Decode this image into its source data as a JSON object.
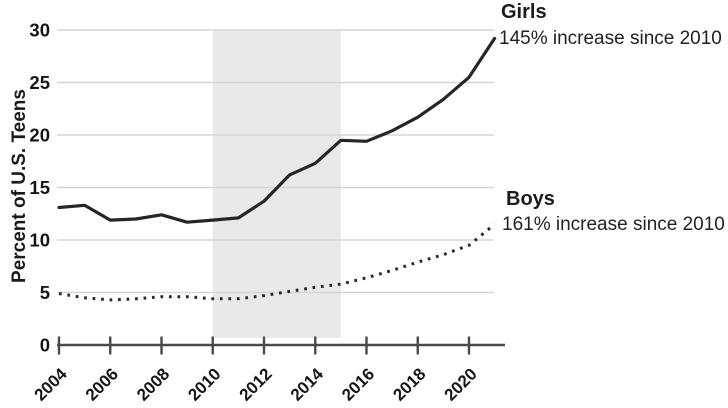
{
  "chart_data": {
    "type": "line",
    "title": "",
    "ylabel": "Percent of U.S. Teens",
    "xlabel": "",
    "x": [
      2004,
      2005,
      2006,
      2007,
      2008,
      2009,
      2010,
      2011,
      2012,
      2013,
      2014,
      2015,
      2016,
      2017,
      2018,
      2019,
      2020,
      2021
    ],
    "series": [
      {
        "name": "Girls",
        "style": "solid",
        "annotation": "145% increase since 2010",
        "values": [
          13.1,
          13.3,
          11.9,
          12.0,
          12.4,
          11.7,
          11.9,
          12.1,
          13.7,
          16.2,
          17.3,
          19.5,
          19.4,
          20.4,
          21.7,
          23.4,
          25.5,
          29.2
        ]
      },
      {
        "name": "Boys",
        "style": "dotted",
        "annotation": "161% increase since 2010",
        "values": [
          4.9,
          4.5,
          4.3,
          4.4,
          4.6,
          4.6,
          4.4,
          4.4,
          4.7,
          5.1,
          5.5,
          5.8,
          6.4,
          7.1,
          7.9,
          8.6,
          9.5,
          11.5
        ]
      }
    ],
    "ylim": [
      0,
      30
    ],
    "yticks": [
      0,
      5,
      10,
      15,
      20,
      25,
      30
    ],
    "xticks": [
      2004,
      2006,
      2008,
      2010,
      2012,
      2014,
      2016,
      2018,
      2020
    ],
    "xlim": [
      2004,
      2021.4
    ],
    "grid": true,
    "legend_position": "annotations-right",
    "shaded_region": {
      "from": 2010,
      "to": 2015,
      "color": "#e9e9e9"
    },
    "colors": {
      "line": "#262626",
      "grid": "#d6d6d6",
      "axis": "#4a4a4a",
      "text": "#161616"
    }
  }
}
